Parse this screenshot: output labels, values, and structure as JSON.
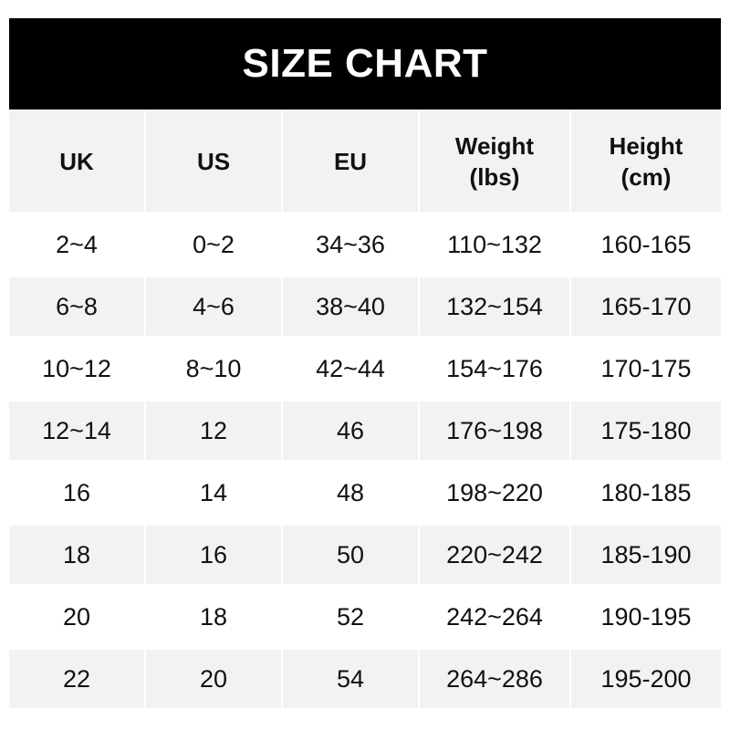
{
  "title": "SIZE CHART",
  "columns": [
    "UK",
    "US",
    "EU",
    "Weight\n(lbs)",
    "Height\n(cm)"
  ],
  "rows": [
    [
      "2~4",
      "0~2",
      "34~36",
      "110~132",
      "160-165"
    ],
    [
      "6~8",
      "4~6",
      "38~40",
      "132~154",
      "165-170"
    ],
    [
      "10~12",
      "8~10",
      "42~44",
      "154~176",
      "170-175"
    ],
    [
      "12~14",
      "12",
      "46",
      "176~198",
      "175-180"
    ],
    [
      "16",
      "14",
      "48",
      "198~220",
      "180-185"
    ],
    [
      "18",
      "16",
      "50",
      "220~242",
      "185-190"
    ],
    [
      "20",
      "18",
      "52",
      "242~264",
      "190-195"
    ],
    [
      "22",
      "20",
      "54",
      "264~286",
      "195-200"
    ]
  ],
  "colors": {
    "title_bg": "#000000",
    "title_text": "#ffffff",
    "stripe": "#f2f2f2"
  }
}
